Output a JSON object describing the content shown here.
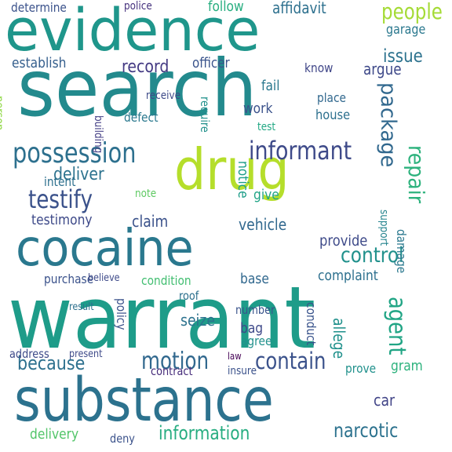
{
  "words": [
    {
      "text": "evidence",
      "color": "#1f968b"
    },
    {
      "text": "search",
      "color": "#238a8d"
    },
    {
      "text": "warrant",
      "color": "#1e9c89"
    },
    {
      "text": "substance",
      "color": "#2c728e"
    },
    {
      "text": "cocaine",
      "color": "#2a788e"
    },
    {
      "text": "drug",
      "color": "#b5de2b"
    },
    {
      "text": "possession",
      "color": "#2d708e"
    },
    {
      "text": "testify",
      "color": "#3b528b"
    },
    {
      "text": "informant",
      "color": "#3e4a89"
    },
    {
      "text": "package",
      "color": "#31688e"
    },
    {
      "text": "repair",
      "color": "#2db27d"
    },
    {
      "text": "control",
      "color": "#21918c"
    },
    {
      "text": "contain",
      "color": "#3b528b"
    },
    {
      "text": "motion",
      "color": "#31688e"
    },
    {
      "text": "because",
      "color": "#2d708e"
    },
    {
      "text": "information",
      "color": "#27ad81"
    },
    {
      "text": "narcotic",
      "color": "#2c728e"
    },
    {
      "text": "agent",
      "color": "#21a585"
    },
    {
      "text": "affidavit",
      "color": "#2d708e"
    },
    {
      "text": "people",
      "color": "#a5db36"
    },
    {
      "text": "determine",
      "color": "#3b528b"
    },
    {
      "text": "follow",
      "color": "#28ae80"
    },
    {
      "text": "issue",
      "color": "#2c728e"
    },
    {
      "text": "garage",
      "color": "#2a788e"
    },
    {
      "text": "argue",
      "color": "#3e4989"
    },
    {
      "text": "establish",
      "color": "#355f8d"
    },
    {
      "text": "record",
      "color": "#443a83"
    },
    {
      "text": "officer",
      "color": "#3a548c"
    },
    {
      "text": "fail",
      "color": "#2a788e"
    },
    {
      "text": "know",
      "color": "#404688"
    },
    {
      "text": "place",
      "color": "#31688e"
    },
    {
      "text": "house",
      "color": "#2d708e"
    },
    {
      "text": "work",
      "color": "#3b528b"
    },
    {
      "text": "deliver",
      "color": "#2c728e"
    },
    {
      "text": "defect",
      "color": "#2a788e"
    },
    {
      "text": "receive",
      "color": "#3e4a89"
    },
    {
      "text": "require",
      "color": "#21918c"
    },
    {
      "text": "building",
      "color": "#433e85"
    },
    {
      "text": "notice",
      "color": "#1f9e89"
    },
    {
      "text": "test",
      "color": "#22a884"
    },
    {
      "text": "testimony",
      "color": "#3e4a89"
    },
    {
      "text": "intent",
      "color": "#2d708e"
    },
    {
      "text": "claim",
      "color": "#3b528b"
    },
    {
      "text": "vehicle",
      "color": "#31688e"
    },
    {
      "text": "note",
      "color": "#5ec962"
    },
    {
      "text": "give",
      "color": "#20a486"
    },
    {
      "text": "damage",
      "color": "#2a788e"
    },
    {
      "text": "support",
      "color": "#25848e"
    },
    {
      "text": "provide",
      "color": "#3e4a89"
    },
    {
      "text": "complaint",
      "color": "#2d708e"
    },
    {
      "text": "purchase",
      "color": "#3b528b"
    },
    {
      "text": "condition",
      "color": "#42be71"
    },
    {
      "text": "base",
      "color": "#31688e"
    },
    {
      "text": "policy",
      "color": "#3b528b"
    },
    {
      "text": "seize",
      "color": "#2c728e"
    },
    {
      "text": "bag",
      "color": "#3e4989"
    },
    {
      "text": "agree",
      "color": "#21918c"
    },
    {
      "text": "conduct",
      "color": "#3a548c"
    },
    {
      "text": "allege",
      "color": "#21918c"
    },
    {
      "text": "gram",
      "color": "#2db27d"
    },
    {
      "text": "prove",
      "color": "#21918c"
    },
    {
      "text": "car",
      "color": "#414487"
    },
    {
      "text": "delivery",
      "color": "#52c569"
    },
    {
      "text": "deny",
      "color": "#3b528b"
    },
    {
      "text": "address",
      "color": "#3e4a89"
    },
    {
      "text": "person",
      "color": "#8fd744"
    },
    {
      "text": "police",
      "color": "#46327e"
    },
    {
      "text": "believe",
      "color": "#3e4a89"
    },
    {
      "text": "roof",
      "color": "#2d708e"
    },
    {
      "text": "number",
      "color": "#3a548c"
    },
    {
      "text": "result",
      "color": "#2d708e"
    },
    {
      "text": "contract",
      "color": "#472d7b"
    },
    {
      "text": "present",
      "color": "#3e4a89"
    },
    {
      "text": "insure",
      "color": "#3b528b"
    },
    {
      "text": "law",
      "color": "#440154"
    }
  ]
}
